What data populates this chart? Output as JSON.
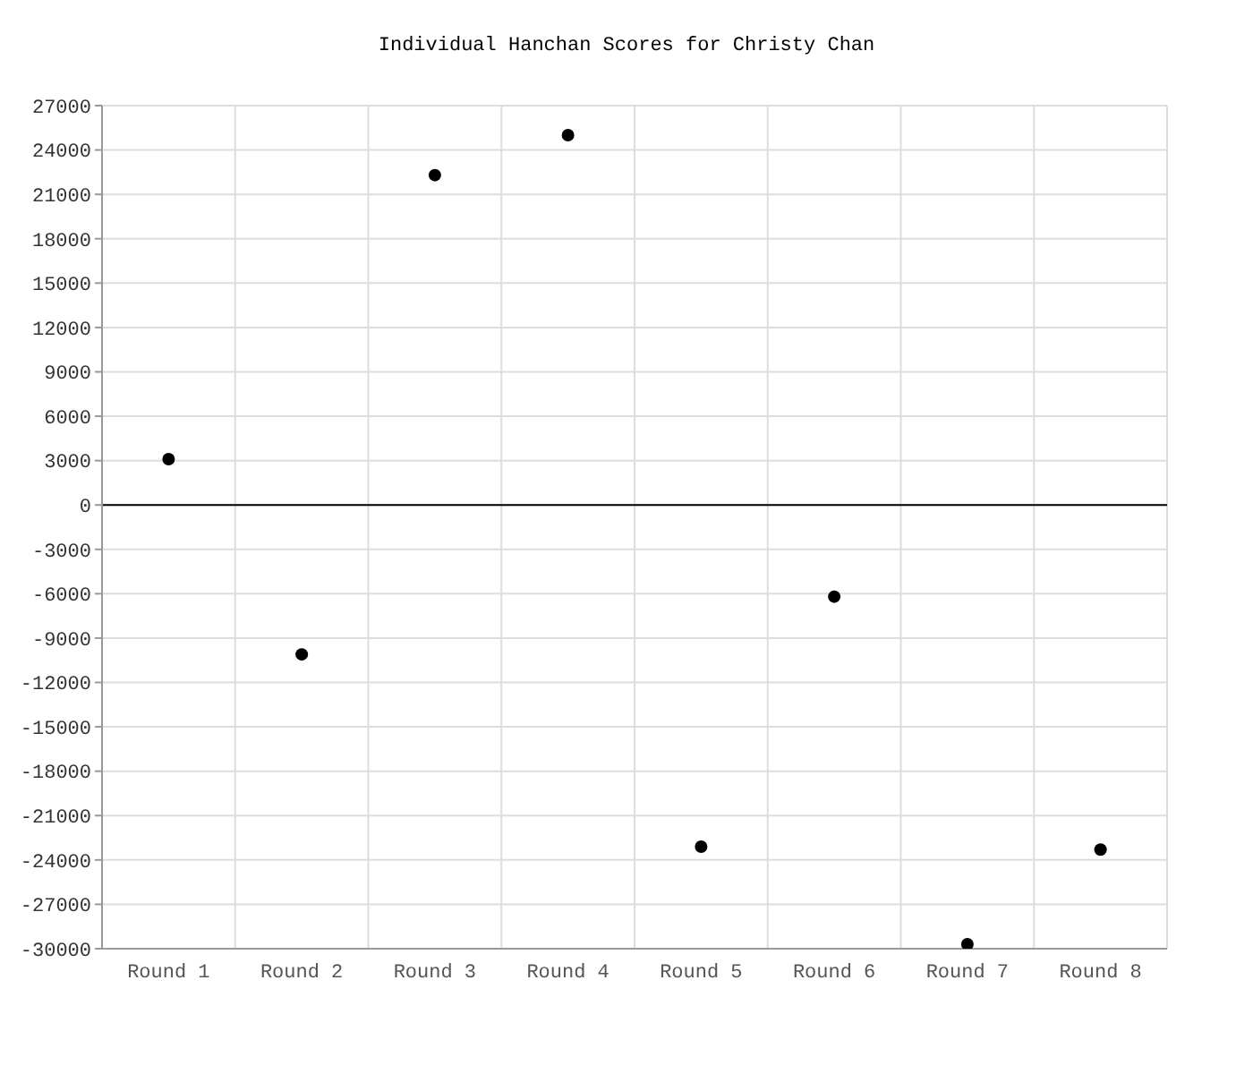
{
  "chart_data": {
    "type": "scatter",
    "title": "Individual Hanchan Scores for Christy Chan",
    "categories": [
      "Round 1",
      "Round 2",
      "Round 3",
      "Round 4",
      "Round 5",
      "Round 6",
      "Round 7",
      "Round 8"
    ],
    "series": [
      {
        "color": "#000000",
        "values": [
          3100,
          -10100,
          22300,
          25000,
          -23100,
          -6200,
          -29700,
          -23300
        ]
      }
    ],
    "ylim": [
      -30000,
      27000
    ],
    "yticks": [
      -30000,
      -27000,
      -24000,
      -21000,
      -18000,
      -15000,
      -12000,
      -9000,
      -6000,
      -3000,
      0,
      3000,
      6000,
      9000,
      12000,
      15000,
      18000,
      21000,
      24000,
      27000
    ],
    "ref_lines": [
      {
        "axis": "y",
        "value": 0,
        "color": "#000000"
      }
    ],
    "grid": true,
    "marker": "circle"
  }
}
